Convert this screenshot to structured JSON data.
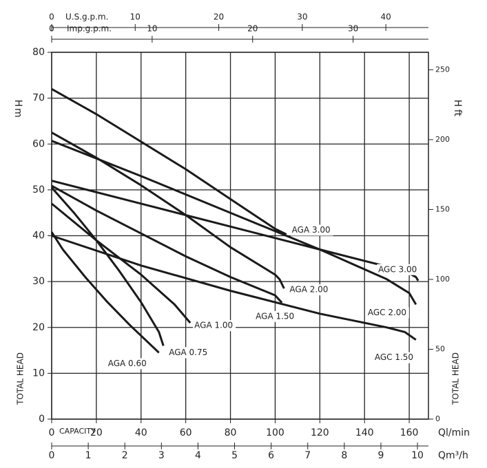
{
  "chart_data": {
    "type": "line",
    "xlim": [
      0,
      168.6
    ],
    "xticks": [
      0,
      20,
      40,
      60,
      80,
      100,
      120,
      140,
      160
    ],
    "ylim": [
      0,
      80
    ],
    "yticks": [
      0,
      10,
      20,
      30,
      40,
      50,
      60,
      70,
      80
    ],
    "y2lim": [
      0,
      262.5
    ],
    "y2ticks": [
      0,
      50,
      100,
      150,
      200,
      250
    ],
    "grid": true,
    "xlabel": "Ql/min",
    "xlabel2": "CAPACITY",
    "ylabel": "H",
    "yunit": "m",
    "y2label": "H",
    "y2unit": "ft",
    "side_label": "TOTAL HEAD",
    "bottom_axis2": {
      "label": "Qm³/h",
      "lim": [
        0,
        10.3
      ],
      "ticks": [
        0,
        1,
        2,
        3,
        4,
        5,
        6,
        7,
        8,
        9,
        10
      ]
    },
    "top_axes": [
      {
        "label": "U.S.g.p.m.",
        "lim": [
          0,
          45.1
        ],
        "ticks": [
          0,
          10,
          20,
          30,
          40
        ]
      },
      {
        "label": "Imp.g.p.m.",
        "lim": [
          0,
          37.5
        ],
        "ticks": [
          0,
          10,
          20,
          30
        ]
      }
    ],
    "series": [
      {
        "name": "AGA 3.00",
        "color": "#1a1a1a",
        "x": [
          0,
          20,
          40,
          60,
          80,
          100,
          105
        ],
        "values": [
          72,
          66.5,
          60.5,
          54.5,
          48,
          41.5,
          40.3
        ]
      },
      {
        "name": "AGC 3.00",
        "color": "#1a1a1a",
        "x": [
          0,
          40,
          80,
          120,
          140,
          158,
          163,
          164
        ],
        "values": [
          52,
          47,
          42,
          37,
          34.5,
          32.3,
          31,
          30.2
        ]
      },
      {
        "name": "AGA 2.00",
        "color": "#1a1a1a",
        "x": [
          0,
          20,
          40,
          60,
          80,
          100,
          102,
          104
        ],
        "values": [
          62.5,
          57,
          51,
          44.5,
          37.5,
          31.5,
          30.5,
          28.5
        ]
      },
      {
        "name": "AGC 2.00",
        "color": "#1a1a1a",
        "x": [
          0,
          40,
          80,
          120,
          150,
          160,
          163
        ],
        "values": [
          60.7,
          53,
          45,
          37,
          30.5,
          27.5,
          25
        ]
      },
      {
        "name": "AGA 1.50",
        "color": "#1a1a1a",
        "x": [
          0,
          20,
          40,
          60,
          80,
          100,
          103
        ],
        "values": [
          50.9,
          45.5,
          40.5,
          35.5,
          31,
          27,
          25.4
        ]
      },
      {
        "name": "AGC 1.50",
        "color": "#1a1a1a",
        "x": [
          0,
          40,
          80,
          120,
          150,
          158,
          163
        ],
        "values": [
          40,
          33.5,
          28,
          23,
          20,
          19,
          17.3
        ]
      },
      {
        "name": "AGA 1.00",
        "color": "#1a1a1a",
        "x": [
          0,
          20,
          40,
          55,
          62
        ],
        "values": [
          47,
          39,
          31.5,
          25,
          21
        ]
      },
      {
        "name": "AGA 0.75",
        "color": "#1a1a1a",
        "x": [
          0,
          10,
          20,
          30,
          40,
          48,
          50
        ],
        "values": [
          50.5,
          45,
          39,
          32.5,
          25.5,
          19,
          16
        ]
      },
      {
        "name": "AGA 0.60",
        "color": "#1a1a1a",
        "x": [
          0,
          5,
          15,
          25,
          35,
          48
        ],
        "values": [
          40.8,
          37,
          31,
          25.5,
          20.5,
          14.5
        ]
      }
    ]
  }
}
